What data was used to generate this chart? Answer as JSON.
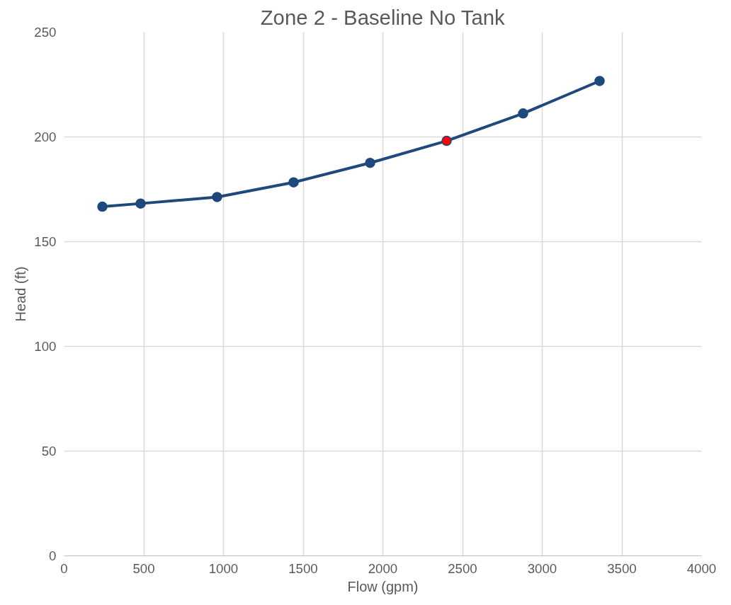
{
  "chart_data": {
    "type": "line",
    "title": "Zone 2 - Baseline No Tank",
    "xlabel": "Flow (gpm)",
    "ylabel": "Head (ft)",
    "x": [
      240,
      480,
      960,
      1440,
      1920,
      2400,
      2880,
      3360
    ],
    "series": [
      {
        "color": "#1f497d",
        "colors": [
          "#1f497d",
          "#1f497d",
          "#1f497d",
          "#1f497d",
          "#1f497d",
          "#ff0000",
          "#1f497d",
          "#1f497d"
        ],
        "values": [
          166.7,
          168.2,
          171.3,
          178.3,
          187.6,
          198.1,
          211.2,
          226.7
        ]
      }
    ],
    "xlim": [
      0,
      4000
    ],
    "xticks": [
      0,
      500,
      1000,
      1500,
      2000,
      2500,
      3000,
      3500,
      4000
    ],
    "ylim": [
      0,
      250
    ],
    "yticks": [
      0,
      50,
      100,
      150,
      200,
      250
    ],
    "grid": true,
    "marker": "circle",
    "line_style": "solid"
  }
}
